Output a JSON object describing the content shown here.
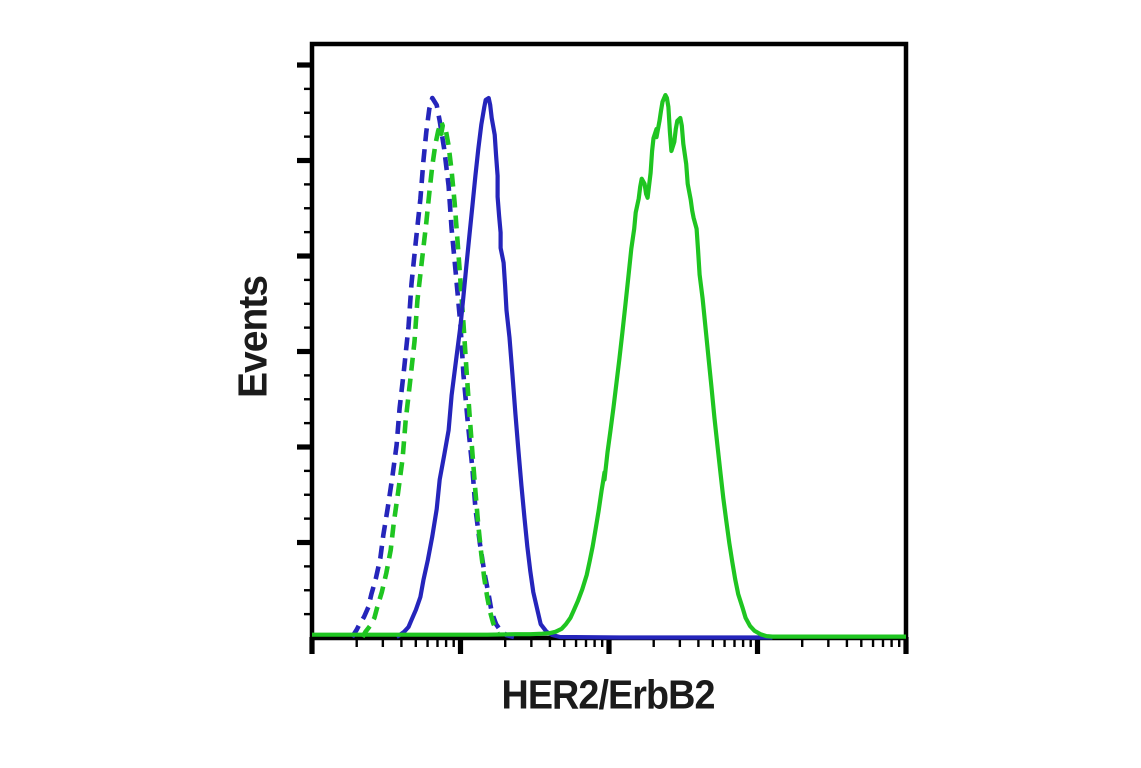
{
  "page": {
    "background": "#ffffff"
  },
  "labels": {
    "xlabel": "HER2/ErbB2",
    "ylabel": "Events"
  },
  "chart_data": {
    "type": "line",
    "chart_kind": "flow-cytometry-histogram",
    "title": "",
    "xlabel": "HER2/ErbB2",
    "ylabel": "Events",
    "x_scale": "log-decades",
    "xlim": [
      0,
      4
    ],
    "ylim": [
      0,
      124.4
    ],
    "x_major_decades": [
      0,
      1,
      2,
      3,
      4
    ],
    "x_minor_log_steps": [
      2,
      3,
      4,
      5,
      6,
      7,
      8,
      9
    ],
    "y_major_ticks": [
      20,
      40,
      60,
      80,
      100,
      120
    ],
    "y_minor_step": 5,
    "grid": false,
    "legend": "none",
    "axis_color": "#000000",
    "colors": {
      "blue": "#2525bb",
      "green": "#1fc521"
    },
    "series": [
      {
        "name": "blue-dashed",
        "color": "#2525bb",
        "style": "dashed",
        "points": [
          [
            0.27,
            0.2
          ],
          [
            0.3,
            1.7
          ],
          [
            0.32,
            2.9
          ],
          [
            0.35,
            4.4
          ],
          [
            0.38,
            6.5
          ],
          [
            0.4,
            9.2
          ],
          [
            0.43,
            12.5
          ],
          [
            0.46,
            16.7
          ],
          [
            0.48,
            21.5
          ],
          [
            0.51,
            27.2
          ],
          [
            0.54,
            33.5
          ],
          [
            0.57,
            40.4
          ],
          [
            0.59,
            48.1
          ],
          [
            0.62,
            56.4
          ],
          [
            0.65,
            65.2
          ],
          [
            0.67,
            74.2
          ],
          [
            0.7,
            83.2
          ],
          [
            0.73,
            92.0
          ],
          [
            0.75,
            99.9
          ],
          [
            0.77,
            106.0
          ],
          [
            0.79,
            110.8
          ],
          [
            0.81,
            113.1
          ],
          [
            0.84,
            111.6
          ],
          [
            0.86,
            108.3
          ],
          [
            0.89,
            102.4
          ],
          [
            0.92,
            94.7
          ],
          [
            0.94,
            85.7
          ],
          [
            0.97,
            75.9
          ],
          [
            1.0,
            65.4
          ],
          [
            1.02,
            55.0
          ],
          [
            1.05,
            44.9
          ],
          [
            1.08,
            35.5
          ],
          [
            1.1,
            27.2
          ],
          [
            1.13,
            19.9
          ],
          [
            1.16,
            13.8
          ],
          [
            1.19,
            9.0
          ],
          [
            1.21,
            5.4
          ],
          [
            1.24,
            2.9
          ],
          [
            1.27,
            1.5
          ],
          [
            1.31,
            0.6
          ],
          [
            1.36,
            0.2
          ]
        ]
      },
      {
        "name": "green-dashed",
        "color": "#1fc521",
        "style": "dashed",
        "points": [
          [
            0.34,
            0.2
          ],
          [
            0.36,
            1.3
          ],
          [
            0.39,
            2.5
          ],
          [
            0.42,
            4.2
          ],
          [
            0.44,
            6.5
          ],
          [
            0.47,
            9.6
          ],
          [
            0.5,
            13.6
          ],
          [
            0.53,
            18.4
          ],
          [
            0.55,
            24.0
          ],
          [
            0.58,
            30.5
          ],
          [
            0.61,
            37.6
          ],
          [
            0.63,
            45.4
          ],
          [
            0.66,
            53.5
          ],
          [
            0.69,
            62.1
          ],
          [
            0.71,
            70.7
          ],
          [
            0.74,
            79.0
          ],
          [
            0.77,
            87.0
          ],
          [
            0.79,
            93.2
          ],
          [
            0.81,
            98.9
          ],
          [
            0.83,
            103.3
          ],
          [
            0.85,
            106.2
          ],
          [
            0.87,
            108.1
          ],
          [
            0.88,
            107.3
          ],
          [
            0.87,
            105.6
          ],
          [
            0.9,
            106.6
          ],
          [
            0.92,
            103.1
          ],
          [
            0.94,
            97.8
          ],
          [
            0.96,
            91.2
          ],
          [
            0.98,
            83.2
          ],
          [
            1.0,
            74.6
          ],
          [
            1.02,
            65.7
          ],
          [
            1.04,
            56.4
          ],
          [
            1.06,
            47.2
          ],
          [
            1.08,
            38.7
          ],
          [
            1.1,
            30.7
          ],
          [
            1.12,
            23.6
          ],
          [
            1.14,
            17.6
          ],
          [
            1.16,
            12.5
          ],
          [
            1.18,
            8.6
          ],
          [
            1.2,
            5.4
          ],
          [
            1.22,
            3.1
          ],
          [
            1.25,
            1.0
          ]
        ]
      },
      {
        "name": "blue-solid",
        "color": "#2525bb",
        "style": "solid",
        "points": [
          [
            0.57,
            0.2
          ],
          [
            0.59,
            0.6
          ],
          [
            0.62,
            1.3
          ],
          [
            0.65,
            2.3
          ],
          [
            0.67,
            3.8
          ],
          [
            0.7,
            5.9
          ],
          [
            0.73,
            8.6
          ],
          [
            0.75,
            12.1
          ],
          [
            0.78,
            16.3
          ],
          [
            0.81,
            21.3
          ],
          [
            0.84,
            27.0
          ],
          [
            0.86,
            33.2
          ],
          [
            0.89,
            38.3
          ],
          [
            0.92,
            43.5
          ],
          [
            0.94,
            50.8
          ],
          [
            0.97,
            58.1
          ],
          [
            1.0,
            65.4
          ],
          [
            1.02,
            71.7
          ],
          [
            1.04,
            78.0
          ],
          [
            1.06,
            84.3
          ],
          [
            1.08,
            90.5
          ],
          [
            1.1,
            96.8
          ],
          [
            1.12,
            102.4
          ],
          [
            1.14,
            107.5
          ],
          [
            1.16,
            111.2
          ],
          [
            1.17,
            112.7
          ],
          [
            1.19,
            113.1
          ],
          [
            1.2,
            111.6
          ],
          [
            1.21,
            108.9
          ],
          [
            1.23,
            105.4
          ],
          [
            1.24,
            101.0
          ],
          [
            1.25,
            96.8
          ],
          [
            1.25,
            92.4
          ],
          [
            1.26,
            88.4
          ],
          [
            1.27,
            84.9
          ],
          [
            1.27,
            81.7
          ],
          [
            1.29,
            78.6
          ],
          [
            1.3,
            73.8
          ],
          [
            1.31,
            68.6
          ],
          [
            1.33,
            62.9
          ],
          [
            1.35,
            55.0
          ],
          [
            1.37,
            47.0
          ],
          [
            1.39,
            39.3
          ],
          [
            1.41,
            32.0
          ],
          [
            1.43,
            25.3
          ],
          [
            1.45,
            19.2
          ],
          [
            1.47,
            14.0
          ],
          [
            1.49,
            9.6
          ],
          [
            1.52,
            5.6
          ],
          [
            1.54,
            2.9
          ],
          [
            1.58,
            1.3
          ],
          [
            1.62,
            0.6
          ],
          [
            1.67,
            0.2
          ],
          [
            2.07,
            0.1
          ],
          [
            2.61,
            0.1
          ],
          [
            3.1,
            0.1
          ]
        ]
      },
      {
        "name": "green-solid",
        "color": "#1fc521",
        "style": "solid",
        "points": [
          [
            0.0,
            0.7
          ],
          [
            0.4,
            0.7
          ],
          [
            0.8,
            0.7
          ],
          [
            1.18,
            0.7
          ],
          [
            1.37,
            0.8
          ],
          [
            1.47,
            0.8
          ],
          [
            1.55,
            0.9
          ],
          [
            1.6,
            1.0
          ],
          [
            1.64,
            1.3
          ],
          [
            1.68,
            1.9
          ],
          [
            1.71,
            2.9
          ],
          [
            1.74,
            4.2
          ],
          [
            1.76,
            5.6
          ],
          [
            1.79,
            7.7
          ],
          [
            1.82,
            10.2
          ],
          [
            1.85,
            13.2
          ],
          [
            1.87,
            16.1
          ],
          [
            1.89,
            19.2
          ],
          [
            1.91,
            22.8
          ],
          [
            1.93,
            26.6
          ],
          [
            1.95,
            30.9
          ],
          [
            1.96,
            32.8
          ],
          [
            1.97,
            34.7
          ],
          [
            1.97,
            33.2
          ],
          [
            1.99,
            38.9
          ],
          [
            2.01,
            43.5
          ],
          [
            2.03,
            48.3
          ],
          [
            2.05,
            53.3
          ],
          [
            2.07,
            58.5
          ],
          [
            2.09,
            64.0
          ],
          [
            2.11,
            69.6
          ],
          [
            2.13,
            75.5
          ],
          [
            2.15,
            81.5
          ],
          [
            2.17,
            85.7
          ],
          [
            2.18,
            89.1
          ],
          [
            2.2,
            92.0
          ],
          [
            2.21,
            94.5
          ],
          [
            2.22,
            96.2
          ],
          [
            2.24,
            95.1
          ],
          [
            2.25,
            93.0
          ],
          [
            2.26,
            92.2
          ],
          [
            2.28,
            97.4
          ],
          [
            2.29,
            102.0
          ],
          [
            2.3,
            104.7
          ],
          [
            2.32,
            106.6
          ],
          [
            2.32,
            104.9
          ],
          [
            2.34,
            108.3
          ],
          [
            2.35,
            110.4
          ],
          [
            2.36,
            112.3
          ],
          [
            2.38,
            113.7
          ],
          [
            2.39,
            113.1
          ],
          [
            2.4,
            111.2
          ],
          [
            2.41,
            106.0
          ],
          [
            2.42,
            102.0
          ],
          [
            2.44,
            103.9
          ],
          [
            2.45,
            106.6
          ],
          [
            2.46,
            108.3
          ],
          [
            2.48,
            108.9
          ],
          [
            2.49,
            107.3
          ],
          [
            2.5,
            103.5
          ],
          [
            2.52,
            99.3
          ],
          [
            2.53,
            95.1
          ],
          [
            2.55,
            91.8
          ],
          [
            2.56,
            89.5
          ],
          [
            2.57,
            88.0
          ],
          [
            2.59,
            85.7
          ],
          [
            2.6,
            81.1
          ],
          [
            2.61,
            76.1
          ],
          [
            2.63,
            71.1
          ],
          [
            2.65,
            65.0
          ],
          [
            2.67,
            58.7
          ],
          [
            2.69,
            52.5
          ],
          [
            2.71,
            46.2
          ],
          [
            2.73,
            40.4
          ],
          [
            2.75,
            34.7
          ],
          [
            2.77,
            29.3
          ],
          [
            2.79,
            24.5
          ],
          [
            2.81,
            19.9
          ],
          [
            2.83,
            15.9
          ],
          [
            2.85,
            12.3
          ],
          [
            2.87,
            9.2
          ],
          [
            2.9,
            6.3
          ],
          [
            2.92,
            4.2
          ],
          [
            2.95,
            2.5
          ],
          [
            2.98,
            1.5
          ],
          [
            3.02,
            0.8
          ],
          [
            3.06,
            0.4
          ],
          [
            3.1,
            0.3
          ],
          [
            3.4,
            0.3
          ],
          [
            3.7,
            0.3
          ],
          [
            4.0,
            0.3
          ]
        ]
      }
    ]
  }
}
